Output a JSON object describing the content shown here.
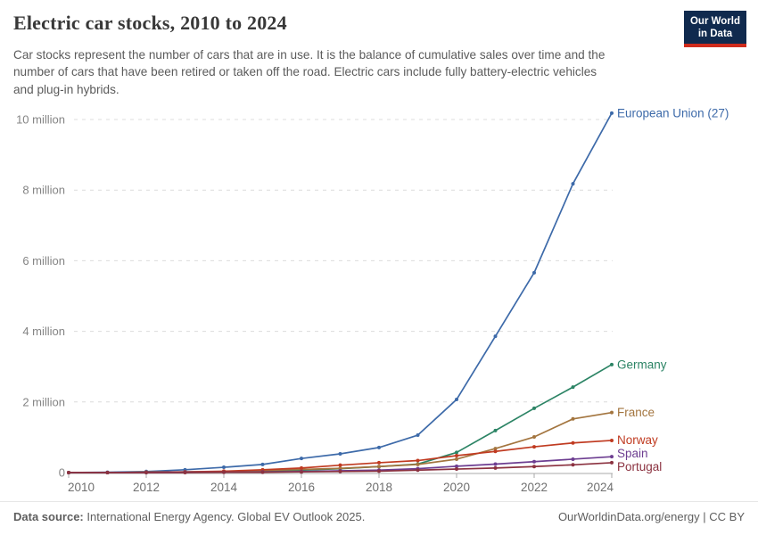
{
  "header": {
    "title": "Electric car stocks, 2010 to 2024",
    "subtitle_lines": [
      "Car stocks represent the number of cars that are in use. It is the balance of cumulative sales over time and the",
      "number of cars that have been retired or taken off the road. Electric cars include fully battery-electric vehicles",
      "and plug-in hybrids."
    ],
    "logo": {
      "line1": "Our World",
      "line2": "in Data",
      "bg": "#102A4E",
      "accent": "#CF2B1C"
    }
  },
  "chart_data": {
    "type": "line",
    "x": [
      2010,
      2011,
      2012,
      2013,
      2014,
      2015,
      2016,
      2017,
      2018,
      2019,
      2020,
      2021,
      2022,
      2023,
      2024
    ],
    "unit": "million cars",
    "series": [
      {
        "name": "European Union (27)",
        "color": "#3D6AA9",
        "values": [
          0.0,
          0.01,
          0.03,
          0.08,
          0.15,
          0.23,
          0.4,
          0.53,
          0.71,
          1.06,
          2.07,
          3.86,
          5.66,
          8.18,
          10.18
        ]
      },
      {
        "name": "Germany",
        "color": "#2C8465",
        "values": [
          0.0,
          0.0,
          0.01,
          0.02,
          0.03,
          0.05,
          0.07,
          0.11,
          0.17,
          0.24,
          0.57,
          1.19,
          1.82,
          2.42,
          3.06
        ]
      },
      {
        "name": "France",
        "color": "#A3753F",
        "values": [
          0.0,
          0.0,
          0.01,
          0.02,
          0.03,
          0.06,
          0.09,
          0.12,
          0.17,
          0.23,
          0.38,
          0.68,
          1.01,
          1.52,
          1.7
        ]
      },
      {
        "name": "Norway",
        "color": "#C03B21",
        "values": [
          0.0,
          0.0,
          0.01,
          0.02,
          0.04,
          0.08,
          0.13,
          0.21,
          0.28,
          0.34,
          0.48,
          0.6,
          0.73,
          0.84,
          0.91
        ]
      },
      {
        "name": "Spain",
        "color": "#6D3E91",
        "values": [
          0.0,
          0.0,
          0.0,
          0.01,
          0.01,
          0.02,
          0.03,
          0.05,
          0.07,
          0.11,
          0.18,
          0.24,
          0.31,
          0.38,
          0.45
        ]
      },
      {
        "name": "Portugal",
        "color": "#8B3240",
        "values": [
          0.0,
          0.0,
          0.0,
          0.0,
          0.01,
          0.01,
          0.02,
          0.03,
          0.04,
          0.07,
          0.1,
          0.13,
          0.17,
          0.22,
          0.28
        ]
      }
    ],
    "y_ticks": [
      {
        "value": 0,
        "label": "0"
      },
      {
        "value": 2,
        "label": "2 million"
      },
      {
        "value": 4,
        "label": "4 million"
      },
      {
        "value": 6,
        "label": "6 million"
      },
      {
        "value": 8,
        "label": "8 million"
      },
      {
        "value": 10,
        "label": "10 million"
      }
    ],
    "x_ticks": [
      "2010",
      "2012",
      "2014",
      "2016",
      "2018",
      "2020",
      "2022",
      "2024"
    ],
    "ylim": [
      0,
      10.4
    ],
    "grid": "dashed-horizontal",
    "legend_position": "right-of-line-ends"
  },
  "footer": {
    "source_label": "Data source:",
    "source_text": " International Energy Agency. Global EV Outlook 2025.",
    "right_text": "OurWorldinData.org/energy | CC BY"
  }
}
